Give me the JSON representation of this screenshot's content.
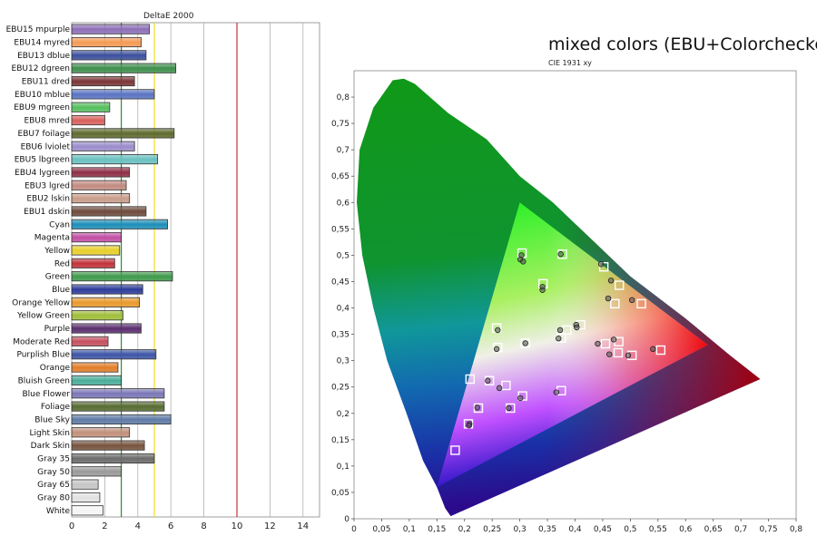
{
  "main_title": "mixed colors (EBU+Colorchecker)",
  "chart_data": [
    {
      "type": "bar",
      "title": "DeltaE 2000",
      "orientation": "horizontal",
      "xlim": [
        0,
        15
      ],
      "xticks": [
        0,
        2,
        4,
        6,
        8,
        10,
        12,
        14
      ],
      "reference_lines": [
        {
          "value": 3,
          "color": "#2e8b2e"
        },
        {
          "value": 5,
          "color": "#f0e020"
        },
        {
          "value": 10,
          "color": "#cc3333"
        }
      ],
      "grid": true,
      "categories": [
        "EBU15 mpurple",
        "EBU14 myred",
        "EBU13 dblue",
        "EBU12 dgreen",
        "EBU11 dred",
        "EBU10 mblue",
        "EBU9 mgreen",
        "EBU8 mred",
        "EBU7 foilage",
        "EBU6 lviolet",
        "EBU5 lbgreen",
        "EBU4 lygreen",
        "EBU3 lgred",
        "EBU2 lskin",
        "EBU1 dskin",
        "Cyan",
        "Magenta",
        "Yellow",
        "Red",
        "Green",
        "Blue",
        "Orange Yellow",
        "Yellow Green",
        "Purple",
        "Moderate Red",
        "Purplish Blue",
        "Orange",
        "Bluish Green",
        "Blue Flower",
        "Foliage",
        "Blue Sky",
        "Light Skin",
        "Dark Skin",
        "Gray 35",
        "Gray 50",
        "Gray 65",
        "Gray 80",
        "White"
      ],
      "values": [
        4.7,
        4.2,
        4.5,
        6.3,
        3.8,
        5.0,
        2.3,
        2.0,
        6.2,
        3.8,
        5.2,
        3.5,
        3.3,
        3.5,
        4.5,
        5.8,
        3.0,
        2.9,
        2.6,
        6.1,
        4.3,
        4.1,
        3.1,
        4.2,
        2.2,
        5.1,
        2.8,
        3.0,
        5.6,
        5.6,
        6.0,
        3.5,
        4.4,
        5.0,
        3.0,
        1.6,
        1.7,
        1.9
      ],
      "bar_colors": [
        "#8e6fb8",
        "#f49a55",
        "#3c4f9c",
        "#3f8f4e",
        "#7b3537",
        "#5a74c2",
        "#56bf5e",
        "#d9605d",
        "#5e6a2e",
        "#9b8ccb",
        "#6ac0c0",
        "#8f2e46",
        "#c28c82",
        "#c99d8b",
        "#6e4a3c",
        "#1e8eb8",
        "#c24fa4",
        "#e8cf2a",
        "#c2333a",
        "#3f9a4c",
        "#2d3c9a",
        "#e89a2d",
        "#9fbe3a",
        "#5a2e6e",
        "#c5505f",
        "#3e55a6",
        "#e27e2a",
        "#4aad9a",
        "#7b77b7",
        "#566b32",
        "#5f7ba6",
        "#c2907c",
        "#76533f",
        "#6b6b6b",
        "#9a9a9a",
        "#c6c6c6",
        "#e2e2e2",
        "#f5f5f5"
      ]
    },
    {
      "type": "scatter",
      "title": "CIE 1931 xy",
      "xlim": [
        0,
        0.8
      ],
      "ylim": [
        0,
        0.85
      ],
      "xticks": [
        "0",
        "0,05",
        "0,1",
        "0,15",
        "0,2",
        "0,25",
        "0,3",
        "0,35",
        "0,4",
        "0,45",
        "0,5",
        "0,55",
        "0,6",
        "0,65",
        "0,7",
        "0,75",
        "0,8"
      ],
      "yticks": [
        "0",
        "0,05",
        "0,1",
        "0,15",
        "0,2",
        "0,25",
        "0,3",
        "0,35",
        "0,4",
        "0,45",
        "0,5",
        "0,55",
        "0,6",
        "0,65",
        "0,7",
        "0,75",
        "0,8"
      ],
      "gamut_triangle": [
        [
          0.64,
          0.33
        ],
        [
          0.3,
          0.6
        ],
        [
          0.15,
          0.06
        ]
      ],
      "series": [
        {
          "marker": "square",
          "points": [
            [
              0.304,
              0.504
            ],
            [
              0.377,
              0.502
            ],
            [
              0.452,
              0.478
            ],
            [
              0.342,
              0.446
            ],
            [
              0.48,
              0.443
            ],
            [
              0.472,
              0.408
            ],
            [
              0.52,
              0.408
            ],
            [
              0.41,
              0.368
            ],
            [
              0.385,
              0.358
            ],
            [
              0.258,
              0.362
            ],
            [
              0.26,
              0.325
            ],
            [
              0.31,
              0.333
            ],
            [
              0.375,
              0.343
            ],
            [
              0.455,
              0.332
            ],
            [
              0.479,
              0.336
            ],
            [
              0.478,
              0.315
            ],
            [
              0.503,
              0.31
            ],
            [
              0.555,
              0.32
            ],
            [
              0.21,
              0.265
            ],
            [
              0.245,
              0.262
            ],
            [
              0.275,
              0.253
            ],
            [
              0.305,
              0.233
            ],
            [
              0.375,
              0.243
            ],
            [
              0.225,
              0.21
            ],
            [
              0.283,
              0.21
            ],
            [
              0.207,
              0.18
            ],
            [
              0.183,
              0.13
            ]
          ]
        },
        {
          "marker": "circle",
          "points": [
            [
              0.303,
              0.5
            ],
            [
              0.301,
              0.492
            ],
            [
              0.306,
              0.488
            ],
            [
              0.374,
              0.502
            ],
            [
              0.447,
              0.483
            ],
            [
              0.465,
              0.452
            ],
            [
              0.341,
              0.44
            ],
            [
              0.341,
              0.434
            ],
            [
              0.46,
              0.418
            ],
            [
              0.503,
              0.415
            ],
            [
              0.402,
              0.368
            ],
            [
              0.403,
              0.363
            ],
            [
              0.373,
              0.358
            ],
            [
              0.26,
              0.358
            ],
            [
              0.37,
              0.342
            ],
            [
              0.441,
              0.332
            ],
            [
              0.47,
              0.34
            ],
            [
              0.31,
              0.333
            ],
            [
              0.258,
              0.322
            ],
            [
              0.462,
              0.312
            ],
            [
              0.496,
              0.31
            ],
            [
              0.541,
              0.322
            ],
            [
              0.242,
              0.262
            ],
            [
              0.263,
              0.248
            ],
            [
              0.301,
              0.229
            ],
            [
              0.366,
              0.24
            ],
            [
              0.28,
              0.21
            ],
            [
              0.223,
              0.211
            ],
            [
              0.209,
              0.18
            ],
            [
              0.208,
              0.177
            ]
          ]
        }
      ]
    }
  ]
}
